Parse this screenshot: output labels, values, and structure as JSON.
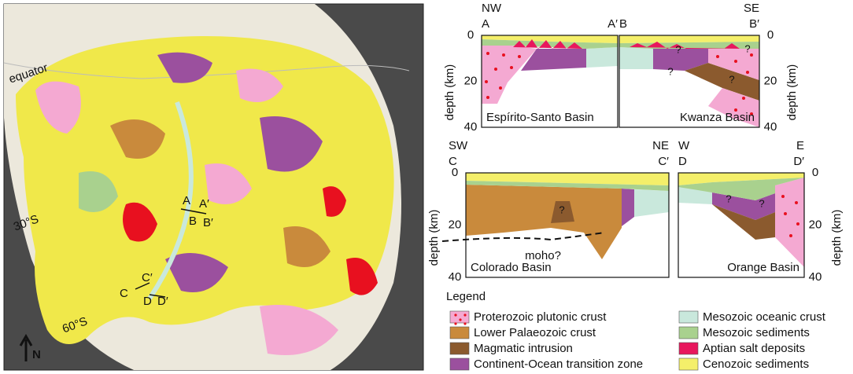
{
  "map": {
    "equator": "equator",
    "lat_30": "30°S",
    "lat_60": "60°S",
    "north": "N",
    "profile_labels": [
      "A",
      "A′",
      "B",
      "B′",
      "C′",
      "C",
      "D",
      "D′"
    ]
  },
  "sections": [
    {
      "title": "Espírito-Santo Basin",
      "direction_left": "NW",
      "end_left": "A",
      "end_right": "A′",
      "axis_label": "depth (km)",
      "ticks": [
        0,
        20,
        40
      ]
    },
    {
      "title": "Kwanza Basin",
      "direction_right": "SE",
      "end_left": "B",
      "end_right": "B′",
      "axis_label": "depth (km)",
      "ticks": [
        0,
        20,
        40
      ],
      "questions": [
        "?",
        "?",
        "?",
        "?"
      ]
    },
    {
      "title": "Colorado Basin",
      "direction_left": "SW",
      "direction_right": "NE",
      "end_left": "C",
      "end_right": "C′",
      "axis_label": "depth (km)",
      "ticks": [
        0,
        20,
        40
      ],
      "annotation": "moho?",
      "questions": [
        "?"
      ]
    },
    {
      "title": "Orange Basin",
      "direction_left": "W",
      "direction_right": "E",
      "end_left": "D",
      "end_right": "D′",
      "axis_label": "depth (km)",
      "ticks": [
        0,
        20,
        40
      ],
      "questions": [
        "?",
        "?"
      ]
    }
  ],
  "legend": {
    "title": "Legend",
    "items": [
      {
        "label": "Proterozoic plutonic crust",
        "color": "#f4a9d2"
      },
      {
        "label": "Lower Palaeozoic crust",
        "color": "#c98a3c"
      },
      {
        "label": "Magmatic intrusion",
        "color": "#8b5a2e"
      },
      {
        "label": "Continent-Ocean transition zone",
        "color": "#9b509e"
      },
      {
        "label": "Mesozoic oceanic crust",
        "color": "#c9e8dc"
      },
      {
        "label": "Mesozoic sediments",
        "color": "#a9d18e"
      },
      {
        "label": "Aptian salt deposits",
        "color": "#e8175d"
      },
      {
        "label": "Cenozoic sediments",
        "color": "#f4ef6a"
      }
    ]
  }
}
